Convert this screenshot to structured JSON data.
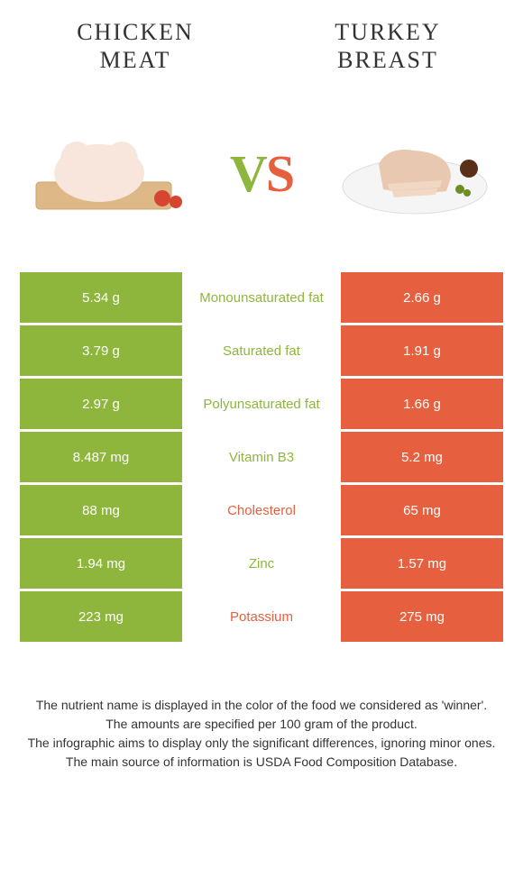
{
  "titles": {
    "left": "CHICKEN MEAT",
    "right": "TURKEY BREAST"
  },
  "vs": {
    "v": "V",
    "s": "S"
  },
  "colors": {
    "left_bg": "#8eb63c",
    "right_bg": "#e6603f",
    "left_text": "#8eb63c",
    "right_text": "#e6603f",
    "mid_bg": "#ffffff"
  },
  "rows": [
    {
      "left": "5.34 g",
      "label": "Monounsaturated fat",
      "right": "2.66 g",
      "winner": "left"
    },
    {
      "left": "3.79 g",
      "label": "Saturated fat",
      "right": "1.91 g",
      "winner": "left"
    },
    {
      "left": "2.97 g",
      "label": "Polyunsaturated fat",
      "right": "1.66 g",
      "winner": "left"
    },
    {
      "left": "8.487 mg",
      "label": "Vitamin B3",
      "right": "5.2 mg",
      "winner": "left"
    },
    {
      "left": "88 mg",
      "label": "Cholesterol",
      "right": "65 mg",
      "winner": "right"
    },
    {
      "left": "1.94 mg",
      "label": "Zinc",
      "right": "1.57 mg",
      "winner": "left"
    },
    {
      "left": "223 mg",
      "label": "Potassium",
      "right": "275 mg",
      "winner": "right"
    }
  ],
  "footer": {
    "line1": "The nutrient name is displayed in the color of the food we considered as 'winner'.",
    "line2": "The amounts are specified per 100 gram of the product.",
    "line3": "The infographic aims to display only the significant differences, ignoring minor ones.",
    "line4": "The main source of information is USDA Food Composition Database."
  }
}
